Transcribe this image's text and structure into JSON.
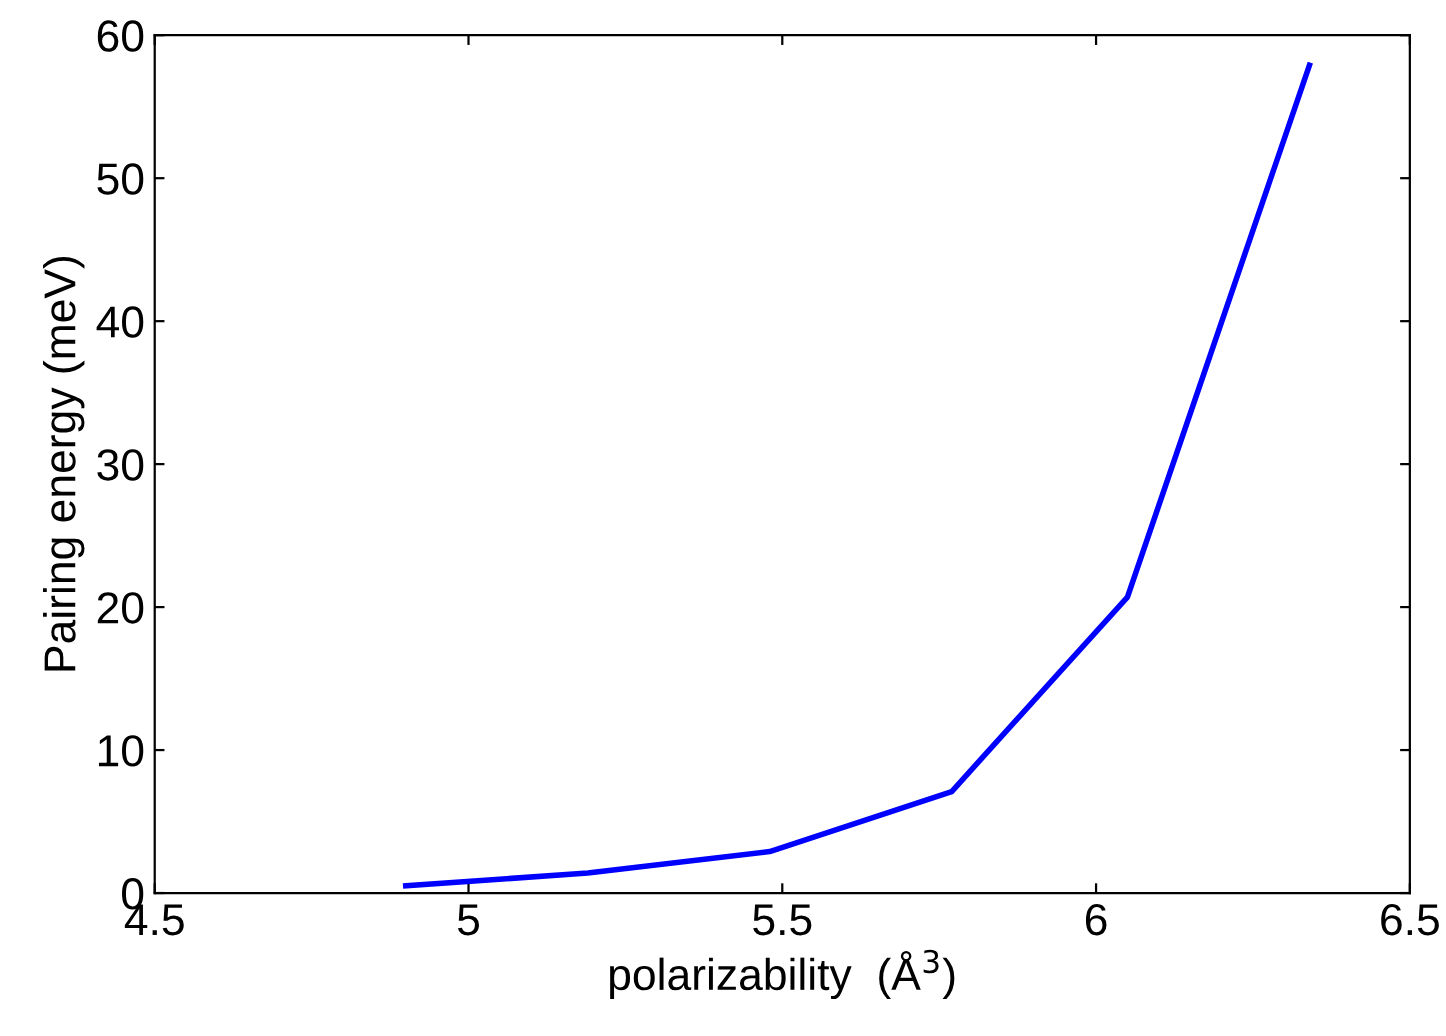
{
  "chart_data": {
    "type": "line",
    "xlabel": "polarizability  (Å$^{3}$)",
    "ylabel": "Pairing energy (meV)",
    "x": [
      4.9,
      5.19,
      5.48,
      5.77,
      6.05,
      6.34
    ],
    "series": [
      {
        "color": "#0000ff",
        "values": [
          0.5,
          1.4,
          2.9,
          7.1,
          20.7,
          57.9
        ]
      }
    ],
    "xlim": [
      4.5,
      6.5
    ],
    "xticks": [
      4.5,
      5,
      5.5,
      6,
      6.5
    ],
    "ylim": [
      0,
      60
    ],
    "yticks": [
      0,
      10,
      20,
      30,
      40,
      50,
      60
    ],
    "grid": false,
    "legend": false,
    "marker": "none",
    "line_style": "solid"
  }
}
